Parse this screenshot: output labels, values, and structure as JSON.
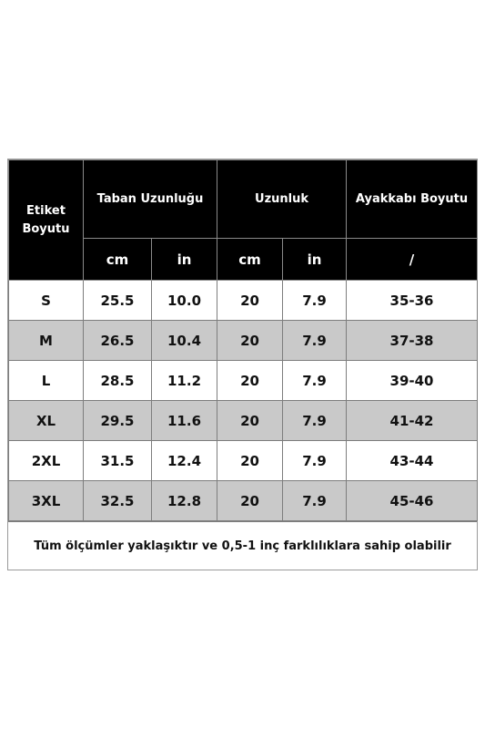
{
  "header": {
    "label_col": "Etiket Boyutu",
    "groups": [
      "Taban Uzunluğu",
      "Uzunluk",
      "Ayakkabı Boyutu"
    ],
    "units": [
      "cm",
      "in",
      "cm",
      "in",
      "/"
    ]
  },
  "rows": [
    {
      "size": "S",
      "sole_cm": "25.5",
      "sole_in": "10.0",
      "len_cm": "20",
      "len_in": "7.9",
      "shoe": "35-36"
    },
    {
      "size": "M",
      "sole_cm": "26.5",
      "sole_in": "10.4",
      "len_cm": "20",
      "len_in": "7.9",
      "shoe": "37-38"
    },
    {
      "size": "L",
      "sole_cm": "28.5",
      "sole_in": "11.2",
      "len_cm": "20",
      "len_in": "7.9",
      "shoe": "39-40"
    },
    {
      "size": "XL",
      "sole_cm": "29.5",
      "sole_in": "11.6",
      "len_cm": "20",
      "len_in": "7.9",
      "shoe": "41-42"
    },
    {
      "size": "2XL",
      "sole_cm": "31.5",
      "sole_in": "12.4",
      "len_cm": "20",
      "len_in": "7.9",
      "shoe": "43-44"
    },
    {
      "size": "3XL",
      "sole_cm": "32.5",
      "sole_in": "12.8",
      "len_cm": "20",
      "len_in": "7.9",
      "shoe": "45-46"
    }
  ],
  "note": "Tüm ölçümler yaklaşıktır ve 0,5-1 inç farklılıklara sahip olabilir",
  "colors": {
    "header_bg": "#000000",
    "alt_row_bg": "#c9c9c9"
  }
}
